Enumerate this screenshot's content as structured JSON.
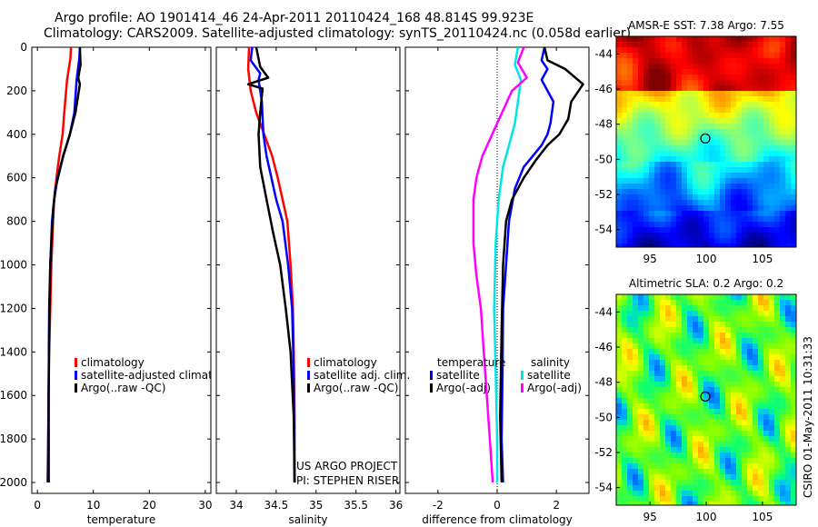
{
  "header": {
    "line1": "Argo profile: AO 1901414_46 24-Apr-2011 20110424_168 48.814S 99.923E",
    "line2": "Climatology: CARS2009. Satellite-adjusted climatology: synTS_20110424.nc (0.058d earlier)"
  },
  "credit": {
    "line1": "US ARGO PROJECT",
    "line2": "PI: STEPHEN RISER"
  },
  "stamp": "CSIRO 01-May-2011 10:31:33",
  "colors": {
    "climatology": "#ff0000",
    "satellite": "#0000ff",
    "argo": "#000000",
    "satellite_salinity": "#00e5e5",
    "argo_salinity_diff": "#ff00ff"
  },
  "chart_data": [
    {
      "id": "temperature",
      "type": "line",
      "xlabel": "temperature",
      "ylabel": "",
      "xlim": [
        -1,
        31
      ],
      "ylim": [
        2050,
        0
      ],
      "xticks": [
        0,
        10,
        20,
        30
      ],
      "xtick_labels": [
        "0",
        "10",
        "20",
        "30"
      ],
      "yticks": [
        0,
        200,
        400,
        600,
        800,
        1000,
        1200,
        1400,
        1600,
        1800,
        2000
      ],
      "ytick_labels": [
        "0",
        "200",
        "400",
        "600",
        "800",
        "1000",
        "1200",
        "1400",
        "1600",
        "1800",
        "2000"
      ],
      "series": [
        {
          "name": "climatology",
          "color": "#ff0000",
          "width": 2.5,
          "x": [
            6.0,
            5.9,
            5.3,
            4.8,
            4.5,
            3.9,
            3.4,
            3.0,
            2.8,
            2.5,
            2.3,
            2.1,
            2.0,
            1.9,
            1.8
          ],
          "y": [
            0,
            50,
            150,
            300,
            400,
            500,
            600,
            700,
            800,
            1000,
            1200,
            1400,
            1600,
            1800,
            2000
          ]
        },
        {
          "name": "satellite-adjusted climatology",
          "color": "#0000ff",
          "width": 2.5,
          "x": [
            7.6,
            7.5,
            7.0,
            6.6,
            5.8,
            4.6,
            3.6,
            3.0,
            2.6,
            2.3,
            2.1,
            2.0,
            2.0
          ],
          "y": [
            0,
            50,
            150,
            300,
            400,
            500,
            600,
            700,
            800,
            1000,
            1200,
            1600,
            2000
          ]
        },
        {
          "name": "Argo(..raw -QC)",
          "color": "#000000",
          "width": 2.5,
          "x": [
            7.6,
            7.7,
            7.3,
            7.6,
            6.8,
            5.8,
            4.6,
            3.2,
            2.8,
            2.3,
            2.1,
            2.0,
            2.0
          ],
          "y": [
            0,
            80,
            140,
            170,
            300,
            400,
            500,
            650,
            750,
            1000,
            1300,
            1600,
            2000
          ]
        }
      ],
      "legend": [
        "climatology",
        "satellite-adjusted climatology",
        "Argo(..raw -QC)"
      ]
    },
    {
      "id": "salinity",
      "type": "line",
      "xlabel": "salinity",
      "xlim": [
        33.75,
        36.05
      ],
      "ylim": [
        2050,
        0
      ],
      "xticks": [
        34,
        34.5,
        35,
        35.5,
        36
      ],
      "xtick_labels": [
        "34",
        "34.5",
        "35",
        "35.5",
        "36"
      ],
      "series": [
        {
          "name": "climatology",
          "color": "#ff0000",
          "width": 2.5,
          "x": [
            34.16,
            34.15,
            34.18,
            34.25,
            34.35,
            34.45,
            34.52,
            34.58,
            34.64,
            34.68,
            34.71,
            34.72,
            34.73,
            34.73
          ],
          "y": [
            0,
            100,
            200,
            300,
            400,
            500,
            600,
            700,
            800,
            1000,
            1200,
            1400,
            1700,
            2000
          ]
        },
        {
          "name": "satellite adj. clim.",
          "color": "#0000ff",
          "width": 2.5,
          "x": [
            34.2,
            34.18,
            34.3,
            34.28,
            34.32,
            34.34,
            34.38,
            34.44,
            34.5,
            34.58,
            34.65,
            34.7,
            34.72,
            34.73
          ],
          "y": [
            0,
            60,
            120,
            150,
            250,
            400,
            500,
            600,
            700,
            800,
            1000,
            1200,
            1500,
            2000
          ]
        },
        {
          "name": "Argo(..raw -QC)",
          "color": "#000000",
          "width": 2.5,
          "x": [
            34.25,
            34.3,
            34.4,
            34.15,
            34.33,
            34.3,
            34.28,
            34.3,
            34.38,
            34.46,
            34.55,
            34.62,
            34.68,
            34.72,
            34.73
          ],
          "y": [
            0,
            90,
            140,
            170,
            190,
            300,
            400,
            550,
            700,
            850,
            1000,
            1200,
            1400,
            1700,
            2000
          ]
        }
      ],
      "legend": [
        "climatology",
        "satellite adj. clim.",
        "Argo(..raw -QC)"
      ]
    },
    {
      "id": "difference",
      "type": "line",
      "xlabel": "difference from climatology",
      "xlim": [
        -3.1,
        3.1
      ],
      "ylim": [
        2050,
        0
      ],
      "xticks": [
        -2,
        0,
        2
      ],
      "xtick_labels": [
        "-2",
        "0",
        "2"
      ],
      "zero_line": 0,
      "series": [
        {
          "name": "temperature satellite",
          "color": "#0000ff",
          "width": 2.5,
          "x": [
            1.6,
            1.5,
            1.7,
            1.5,
            1.9,
            1.8,
            1.7,
            1.5,
            1.2,
            0.9,
            0.6,
            0.4,
            0.3,
            0.2,
            0.18,
            0.15,
            0.2
          ],
          "y": [
            0,
            60,
            100,
            150,
            250,
            350,
            400,
            450,
            500,
            550,
            650,
            800,
            1000,
            1200,
            1500,
            1800,
            2000
          ]
        },
        {
          "name": "temperature Argo(-adj)",
          "color": "#000000",
          "width": 2.5,
          "x": [
            1.6,
            1.7,
            2.3,
            2.9,
            2.5,
            2.4,
            2.1,
            1.7,
            1.3,
            0.9,
            0.5,
            0.3,
            0.2,
            0.15,
            0.1,
            0.15
          ],
          "y": [
            0,
            60,
            100,
            170,
            250,
            330,
            400,
            450,
            520,
            600,
            700,
            800,
            1000,
            1300,
            1700,
            2000
          ]
        },
        {
          "name": "salinity satellite",
          "color": "#00e5e5",
          "width": 2.5,
          "x": [
            0.7,
            0.6,
            0.8,
            0.7,
            0.6,
            0.4,
            0.2,
            0.05,
            -0.05,
            -0.1,
            -0.05,
            0.0,
            0.0
          ],
          "y": [
            0,
            80,
            150,
            250,
            350,
            450,
            550,
            700,
            900,
            1200,
            1500,
            1800,
            2000
          ]
        },
        {
          "name": "salinity Argo(-adj)",
          "color": "#ff00ff",
          "width": 2.5,
          "x": [
            0.9,
            0.7,
            1.0,
            0.5,
            0.0,
            -0.5,
            -0.7,
            -0.8,
            -0.8,
            -0.7,
            -0.55,
            -0.45,
            -0.35,
            -0.25,
            -0.15
          ],
          "y": [
            0,
            70,
            140,
            200,
            350,
            500,
            600,
            700,
            900,
            1050,
            1200,
            1400,
            1600,
            1800,
            2000
          ]
        }
      ],
      "legend_headers": [
        "temperature",
        "salinity"
      ],
      "legend": [
        "satellite",
        "Argo(-adj)",
        "satellite",
        "Argo(-adj)"
      ]
    },
    {
      "id": "sst_map",
      "type": "heatmap",
      "title": "AMSR-E SST: 7.38 Argo: 7.55",
      "xlim": [
        92,
        108
      ],
      "ylim": [
        -55,
        -43
      ],
      "xticks": [
        95,
        100,
        105
      ],
      "xtick_labels": [
        "95",
        "100",
        "105"
      ],
      "yticks": [
        -44,
        -46,
        -48,
        -50,
        -52,
        -54
      ],
      "ytick_labels": [
        "-44",
        "-46",
        "-48",
        "-50",
        "-52",
        "-54"
      ],
      "marker": {
        "lon": 99.923,
        "lat": -48.814
      },
      "palette": [
        "#00007f",
        "#0000ff",
        "#007fff",
        "#00ffff",
        "#7fff7f",
        "#ffff00",
        "#ff7f00",
        "#ff0000",
        "#7f0000"
      ]
    },
    {
      "id": "sla_map",
      "type": "heatmap",
      "title": "Altimetric SLA: 0.2 Argo: 0.2",
      "xlim": [
        92,
        108
      ],
      "ylim": [
        -55,
        -43
      ],
      "xticks": [
        95,
        100,
        105
      ],
      "xtick_labels": [
        "95",
        "100",
        "105"
      ],
      "yticks": [
        -44,
        -46,
        -48,
        -50,
        -52,
        -54
      ],
      "ytick_labels": [
        "-44",
        "-46",
        "-48",
        "-50",
        "-52",
        "-54"
      ],
      "marker": {
        "lon": 99.923,
        "lat": -48.814
      },
      "palette": [
        "#0040ff",
        "#0080ff",
        "#00c0ff",
        "#00ff80",
        "#40ff40",
        "#80ff00",
        "#c0ff00",
        "#ffff00",
        "#ffc000",
        "#ff8000"
      ]
    }
  ]
}
